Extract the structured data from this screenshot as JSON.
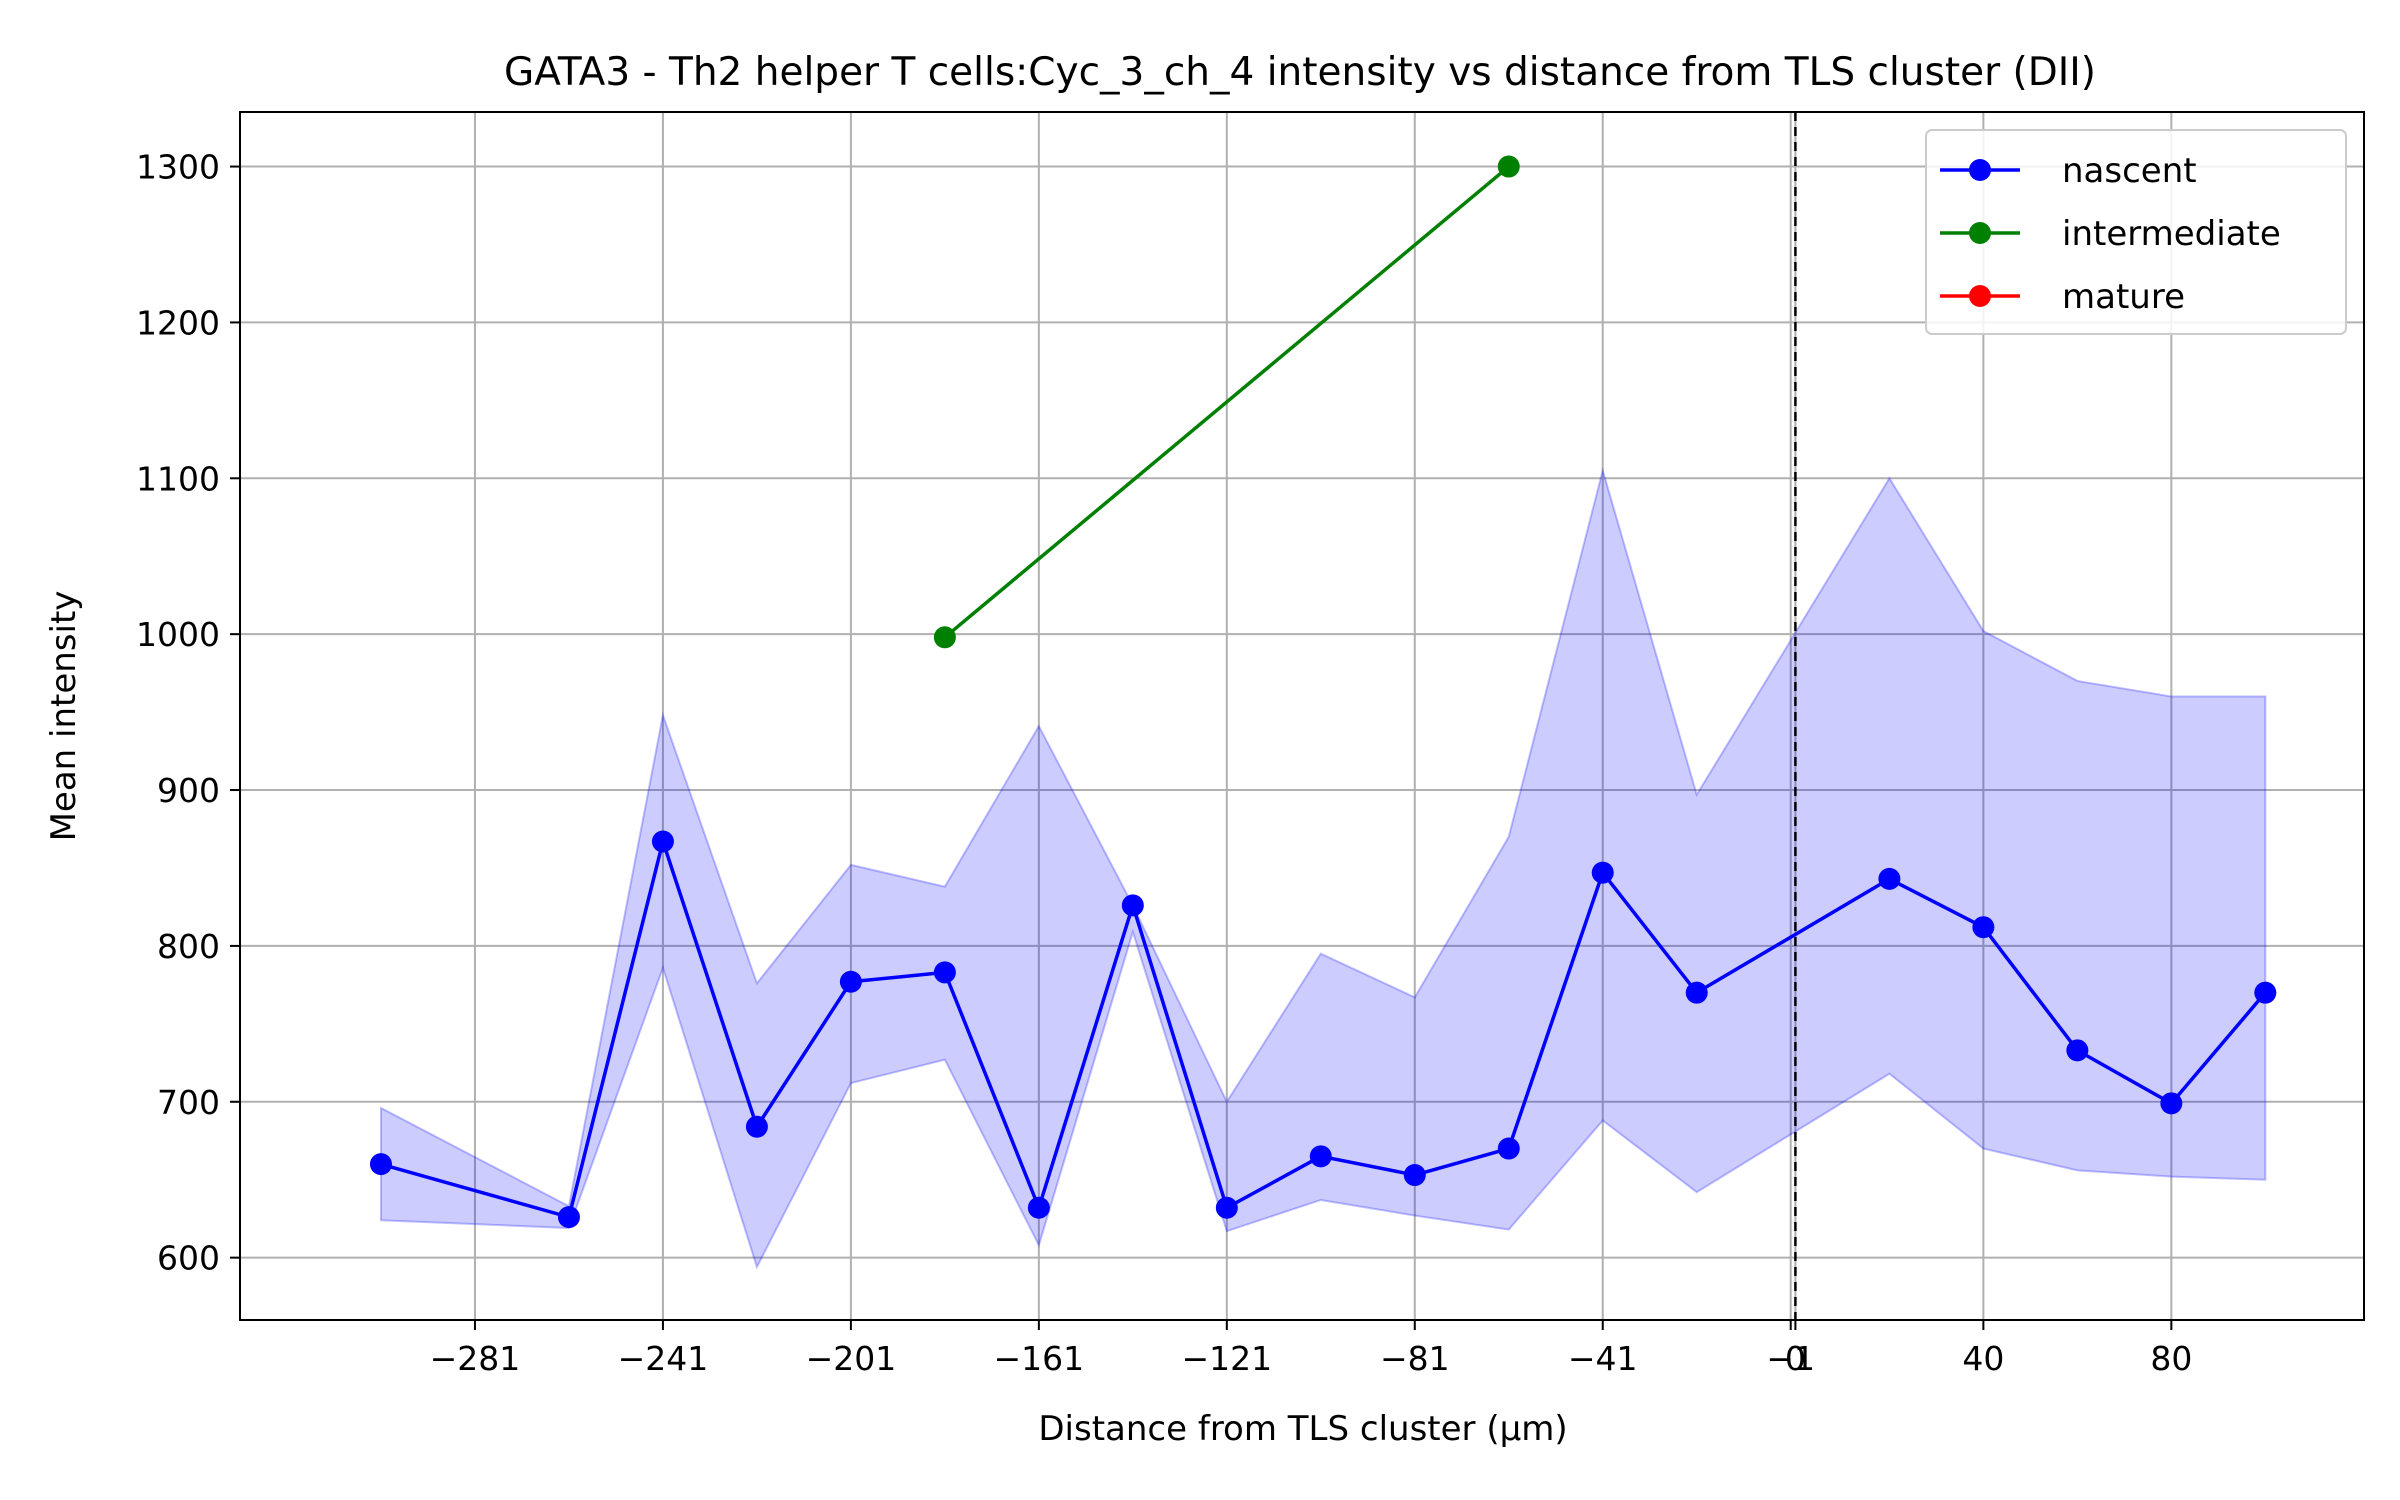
{
  "chart_data": {
    "type": "line",
    "title": "GATA3 - Th2 helper T cells:Cyc_3_ch_4 intensity vs distance from TLS cluster (DII)",
    "xlabel": "Distance from TLS cluster (μm)",
    "ylabel": "Mean intensity",
    "xlim": [
      -331,
      121
    ],
    "ylim": [
      560,
      1335
    ],
    "grid": true,
    "legend_position": "top-right",
    "x_ticks": [
      {
        "value": -281,
        "label": "−281"
      },
      {
        "value": -241,
        "label": "−241"
      },
      {
        "value": -201,
        "label": "−201"
      },
      {
        "value": -161,
        "label": "−161"
      },
      {
        "value": -121,
        "label": "−121"
      },
      {
        "value": -81,
        "label": "−81"
      },
      {
        "value": -41,
        "label": "−41"
      },
      {
        "value": -1,
        "label": "−1"
      },
      {
        "value": 0,
        "label": "0"
      },
      {
        "value": 40,
        "label": "40"
      },
      {
        "value": 80,
        "label": "80"
      }
    ],
    "y_ticks": [
      600,
      700,
      800,
      900,
      1000,
      1100,
      1200,
      1300
    ],
    "reference_line_x": 0,
    "series": [
      {
        "name": "nascent",
        "color": "#0000ff",
        "band_color": "#0000ff",
        "band_opacity": 0.2,
        "points": [
          {
            "x": -301,
            "y": 660,
            "lo": 624,
            "hi": 696
          },
          {
            "x": -261,
            "y": 626,
            "lo": 619,
            "hi": 633
          },
          {
            "x": -241,
            "y": 867,
            "lo": 786,
            "hi": 948
          },
          {
            "x": -221,
            "y": 684,
            "lo": 594,
            "hi": 776
          },
          {
            "x": -201,
            "y": 777,
            "lo": 712,
            "hi": 852
          },
          {
            "x": -181,
            "y": 783,
            "lo": 727,
            "hi": 838
          },
          {
            "x": -161,
            "y": 632,
            "lo": 608,
            "hi": 941
          },
          {
            "x": -141,
            "y": 826,
            "lo": 809,
            "hi": 826
          },
          {
            "x": -121,
            "y": 632,
            "lo": 617,
            "hi": 700
          },
          {
            "x": -101,
            "y": 665,
            "lo": 637,
            "hi": 795
          },
          {
            "x": -81,
            "y": 653,
            "lo": 627,
            "hi": 767
          },
          {
            "x": -61,
            "y": 670,
            "lo": 618,
            "hi": 870
          },
          {
            "x": -41,
            "y": 847,
            "lo": 688,
            "hi": 1105
          },
          {
            "x": -21,
            "y": 770,
            "lo": 642,
            "hi": 897
          },
          {
            "x": 20,
            "y": 843,
            "lo": 718,
            "hi": 1100
          },
          {
            "x": 40,
            "y": 812,
            "lo": 670,
            "hi": 1002
          },
          {
            "x": 60,
            "y": 733,
            "lo": 656,
            "hi": 970
          },
          {
            "x": 80,
            "y": 699,
            "lo": 652,
            "hi": 960
          },
          {
            "x": 100,
            "y": 770,
            "lo": 650,
            "hi": 960
          }
        ]
      },
      {
        "name": "intermediate",
        "color": "#008000",
        "points": [
          {
            "x": -181,
            "y": 998
          },
          {
            "x": -61,
            "y": 1300
          }
        ]
      },
      {
        "name": "mature",
        "color": "#ff0000",
        "points": []
      }
    ]
  }
}
